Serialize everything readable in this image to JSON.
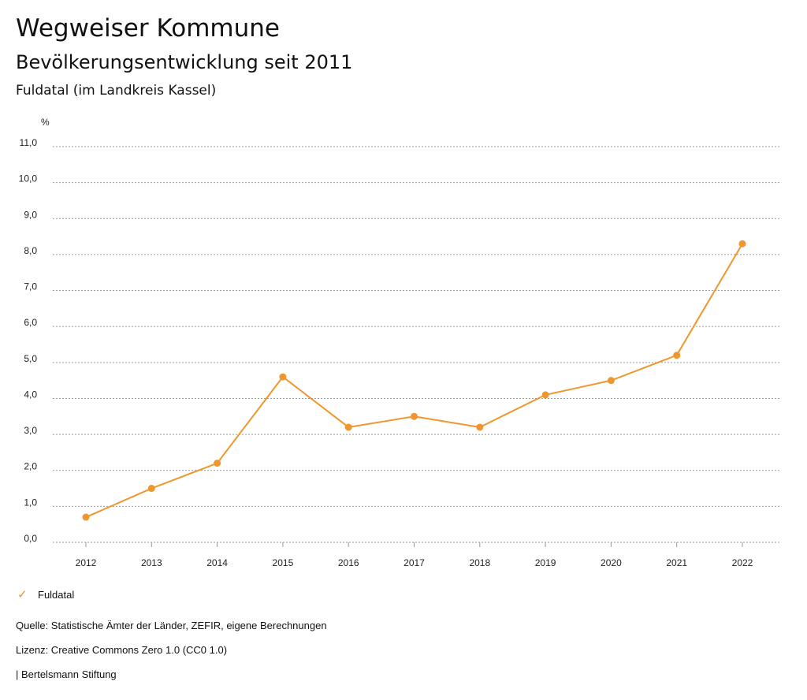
{
  "header": {
    "title": "Wegweiser Kommune",
    "subtitle": "Bevölkerungsentwicklung seit 2011",
    "region": "Fuldatal (im Landkreis Kassel)"
  },
  "chart_data": {
    "type": "line",
    "ylabel": "%",
    "ylim": [
      0,
      11
    ],
    "yticks": [
      "0,0",
      "1,0",
      "2,0",
      "3,0",
      "4,0",
      "5,0",
      "6,0",
      "7,0",
      "8,0",
      "9,0",
      "10,0",
      "11,0"
    ],
    "categories": [
      "2012",
      "2013",
      "2014",
      "2015",
      "2016",
      "2017",
      "2018",
      "2019",
      "2020",
      "2021",
      "2022"
    ],
    "series": [
      {
        "name": "Fuldatal",
        "color": "#f0962e",
        "values": [
          0.7,
          1.5,
          2.2,
          4.6,
          3.2,
          3.5,
          3.2,
          4.1,
          4.5,
          5.2,
          8.3
        ]
      }
    ],
    "grid": true,
    "legend": "bottom-left"
  },
  "footer": {
    "source": "Quelle: Statistische Ämter der Länder, ZEFIR, eigene Berechnungen",
    "license": "Lizenz: Creative Commons Zero 1.0 (CC0 1.0)",
    "brand": "| Bertelsmann Stiftung"
  }
}
